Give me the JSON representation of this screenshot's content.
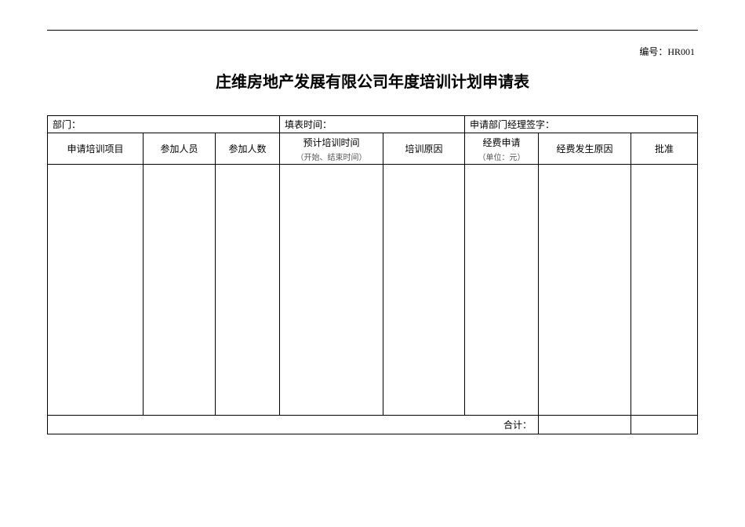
{
  "doc_number_label": "编号：",
  "doc_number_value": "HR001",
  "title": "庄维房地产发展有限公司年度培训计划申请表",
  "info": {
    "department_label": "部门：",
    "fill_date_label": "填表时间：",
    "manager_sign_label": "申请部门经理签字："
  },
  "columns": {
    "c1": "申请培训项目",
    "c2": "参加人员",
    "c3": "参加人数",
    "c4_main": "预计培训时间",
    "c4_sub": "（开始、结束时间）",
    "c5": "培训原因",
    "c6_main": "经费申请",
    "c6_sub": "（单位：元）",
    "c7": "经费发生原因",
    "c8": "批准"
  },
  "total_label": "合计：",
  "colors": {
    "border": "#000000",
    "background": "#ffffff",
    "subtext": "#555555"
  }
}
